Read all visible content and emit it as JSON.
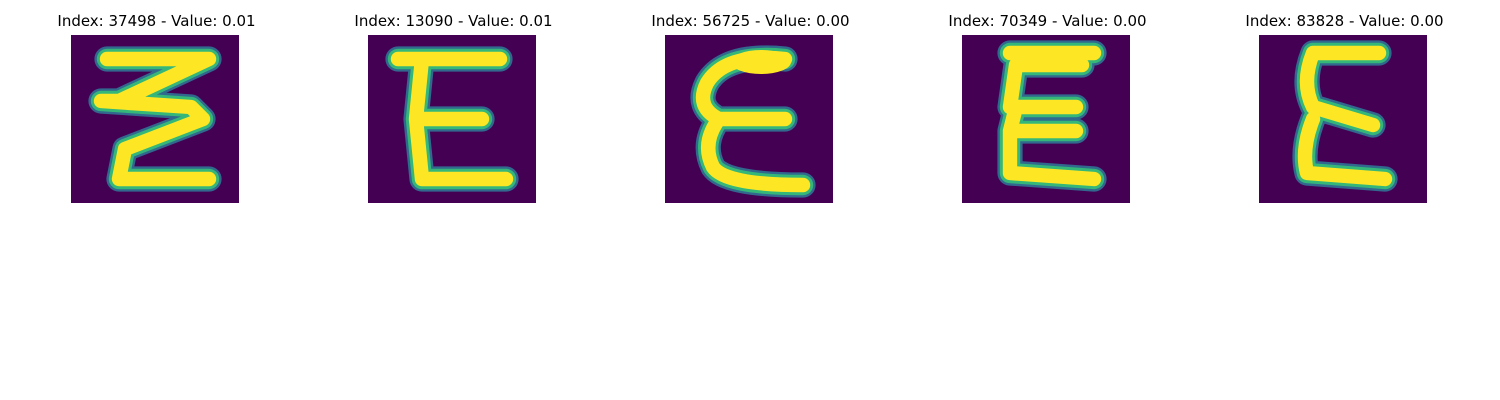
{
  "colors": {
    "background": "#440154",
    "edge_outer": "#31688e",
    "edge_inner": "#35b779",
    "stroke": "#fde725"
  },
  "panels": [
    {
      "title": "Index: 37498 - Value: 0.01",
      "glyph": "zigzag-E",
      "icon": "handwritten-letter-image"
    },
    {
      "title": "Index: 13090 - Value: 0.01",
      "glyph": "E",
      "icon": "handwritten-letter-image"
    },
    {
      "title": "Index: 56725 - Value: 0.00",
      "glyph": "epsilon",
      "icon": "handwritten-letter-image"
    },
    {
      "title": "Index: 70349 - Value: 0.00",
      "glyph": "E",
      "icon": "handwritten-letter-image"
    },
    {
      "title": "Index: 83828 - Value: 0.00",
      "glyph": "E",
      "icon": "handwritten-letter-image"
    }
  ]
}
